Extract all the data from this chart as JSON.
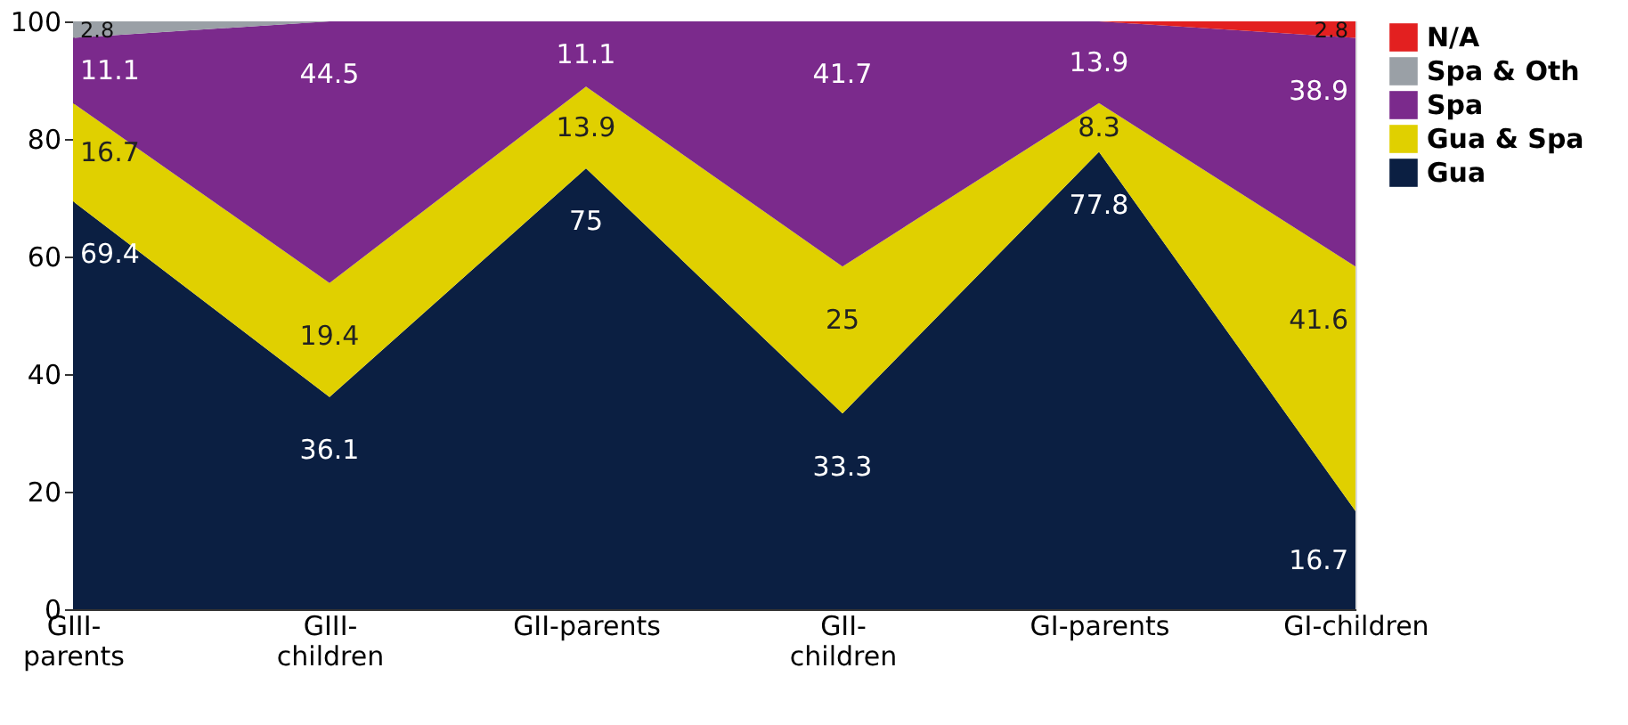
{
  "chart_data": {
    "type": "area",
    "stacked": true,
    "categories": [
      "GIII-parents",
      "GIII-children",
      "GII-parents",
      "GII-children",
      "GI-parents",
      "GI-children"
    ],
    "series": [
      {
        "name": "Gua",
        "color": "#0b1f42",
        "values": [
          69.4,
          36.1,
          75,
          33.3,
          77.8,
          16.7
        ],
        "value_labels": [
          "69.4",
          "36.1",
          "75",
          "33.3",
          "77.8",
          "16.7"
        ]
      },
      {
        "name": "Gua & Spa",
        "color": "#e0d000",
        "values": [
          16.7,
          19.4,
          13.9,
          25,
          8.3,
          41.6
        ],
        "value_labels": [
          "16.7",
          "19.4",
          "13.9",
          "25",
          "8.3",
          "41.6"
        ]
      },
      {
        "name": "Spa",
        "color": "#7b2a8c",
        "values": [
          11.1,
          44.5,
          11.1,
          41.7,
          13.9,
          38.9
        ],
        "value_labels": [
          "11.1",
          "44.5",
          "11.1",
          "41.7",
          "13.9",
          "38.9"
        ]
      },
      {
        "name": "Spa & Oth",
        "color": "#9aa0a6",
        "values": [
          2.8,
          0,
          null,
          null,
          null,
          null
        ],
        "value_labels": [
          "2.8",
          null,
          null,
          null,
          null,
          null
        ]
      },
      {
        "name": "N/A",
        "color": "#e32020",
        "values": [
          null,
          null,
          null,
          null,
          0,
          2.8
        ],
        "value_labels": [
          null,
          null,
          null,
          null,
          null,
          "2.8"
        ]
      }
    ],
    "ylim": [
      0,
      100
    ],
    "yticks": [
      0,
      20,
      40,
      60,
      80,
      100
    ],
    "grid": false,
    "legend": "top right"
  }
}
